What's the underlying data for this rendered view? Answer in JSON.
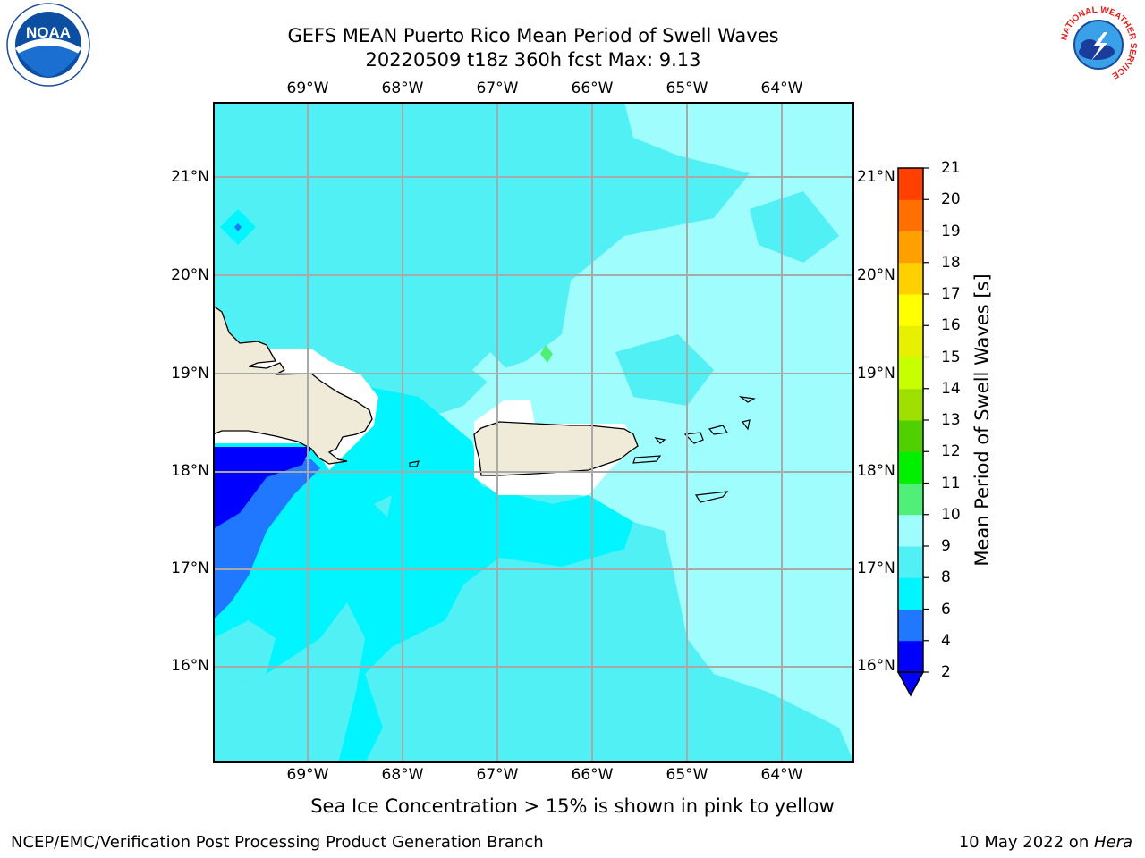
{
  "header": {
    "title_line1": "GEFS MEAN Puerto Rico Mean Period of Swell Waves",
    "title_line2": "20220509 t18z 360h fcst   Max: 9.13"
  },
  "logos": {
    "left": "NOAA",
    "left_ring_text": "NATIONAL OCEANIC AND ATMOSPHERIC ADMINISTRATION · U.S. DEPARTMENT OF COMMERCE",
    "right_ring_text": "NATIONAL WEATHER SERVICE"
  },
  "map": {
    "lon_labels": [
      "69°W",
      "68°W",
      "67°W",
      "66°W",
      "65°W",
      "64°W"
    ],
    "lat_labels": [
      "21°N",
      "20°N",
      "19°N",
      "18°N",
      "17°N",
      "16°N"
    ]
  },
  "colorbar": {
    "title": "Mean Period of Swell Waves [s]",
    "ticks": [
      "2",
      "4",
      "6",
      "8",
      "9",
      "10",
      "11",
      "12",
      "13",
      "14",
      "15",
      "16",
      "17",
      "18",
      "19",
      "20",
      "21"
    ],
    "colors": [
      "#0000ff",
      "#1f78ff",
      "#00f5ff",
      "#50f0f5",
      "#a0fdfd",
      "#50f078",
      "#00f000",
      "#50d000",
      "#a0e000",
      "#c8ff00",
      "#e6f000",
      "#ffff00",
      "#ffd000",
      "#ffa000",
      "#ff7000",
      "#ff4000",
      "#ff0000"
    ],
    "extend_color": "#0000ff"
  },
  "footer": {
    "note": "Sea Ice Concentration > 15% is shown in pink to yellow",
    "left": "NCEP/EMC/Verification Post Processing Product Generation Branch",
    "date": "10 May 2022 on ",
    "system": "Hera"
  }
}
